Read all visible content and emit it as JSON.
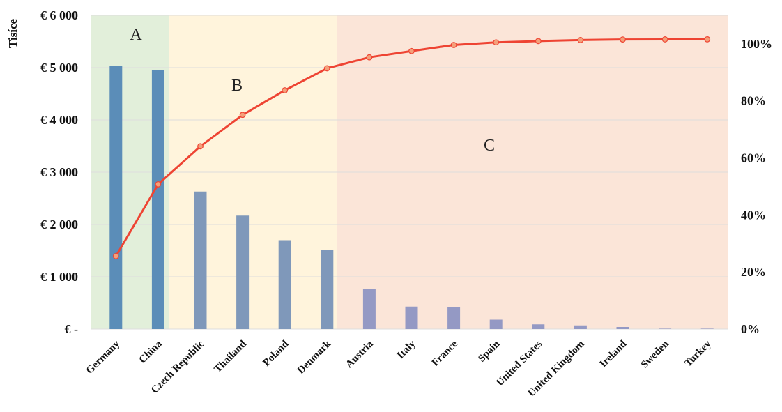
{
  "chart_data": {
    "type": "bar",
    "ylabel": "Tisíce",
    "categories": [
      "Germany",
      "China",
      "Czech Republic",
      "Thailand",
      "Poland",
      "Denmark",
      "Austria",
      "Italy",
      "France",
      "Spain",
      "United States",
      "United Kingdom",
      "Ireland",
      "Sweden",
      "Turkey"
    ],
    "series": [
      {
        "type": "bar",
        "axis": "left",
        "values": [
          5040,
          4960,
          2630,
          2170,
          1700,
          1520,
          760,
          430,
          420,
          180,
          90,
          70,
          40,
          8,
          5
        ]
      },
      {
        "type": "line",
        "axis": "right",
        "values": [
          0.2557,
          0.5075,
          0.6409,
          0.751,
          0.8373,
          0.9144,
          0.9529,
          0.9748,
          0.9961,
          1.0052,
          1.0098,
          1.0134,
          1.0154,
          1.0158,
          1.016
        ]
      }
    ],
    "left_axis": {
      "ylim": [
        0,
        6000
      ],
      "ticks": [
        0,
        1000,
        2000,
        3000,
        4000,
        5000,
        6000
      ],
      "tick_labels": [
        "€ -",
        "€ 1 000",
        "€ 2 000",
        "€ 3 000",
        "€ 4 000",
        "€ 5 000",
        "€ 6 000"
      ]
    },
    "right_axis": {
      "ylim": [
        0,
        1.1
      ],
      "ticks": [
        0,
        0.2,
        0.4,
        0.6,
        0.8,
        1.0
      ],
      "tick_labels": [
        "0%",
        "20%",
        "40%",
        "60%",
        "80%",
        "100%"
      ]
    },
    "zones": [
      {
        "label": "A",
        "from": 0,
        "to": 1,
        "color": "#e2efda"
      },
      {
        "label": "B",
        "from": 2,
        "to": 5,
        "color": "#fff4dc"
      },
      {
        "label": "C",
        "from": 6,
        "to": 14,
        "color": "#fbe5d8"
      }
    ],
    "colors": {
      "bar_group_a": "#5b8db8",
      "bar_group_b": "#7f98ba",
      "bar_group_c": "#9499c4",
      "line": "#ee4433",
      "marker_fill": "#f4a07a",
      "grid": "#dddddd"
    },
    "grid": true,
    "legend": "none"
  }
}
